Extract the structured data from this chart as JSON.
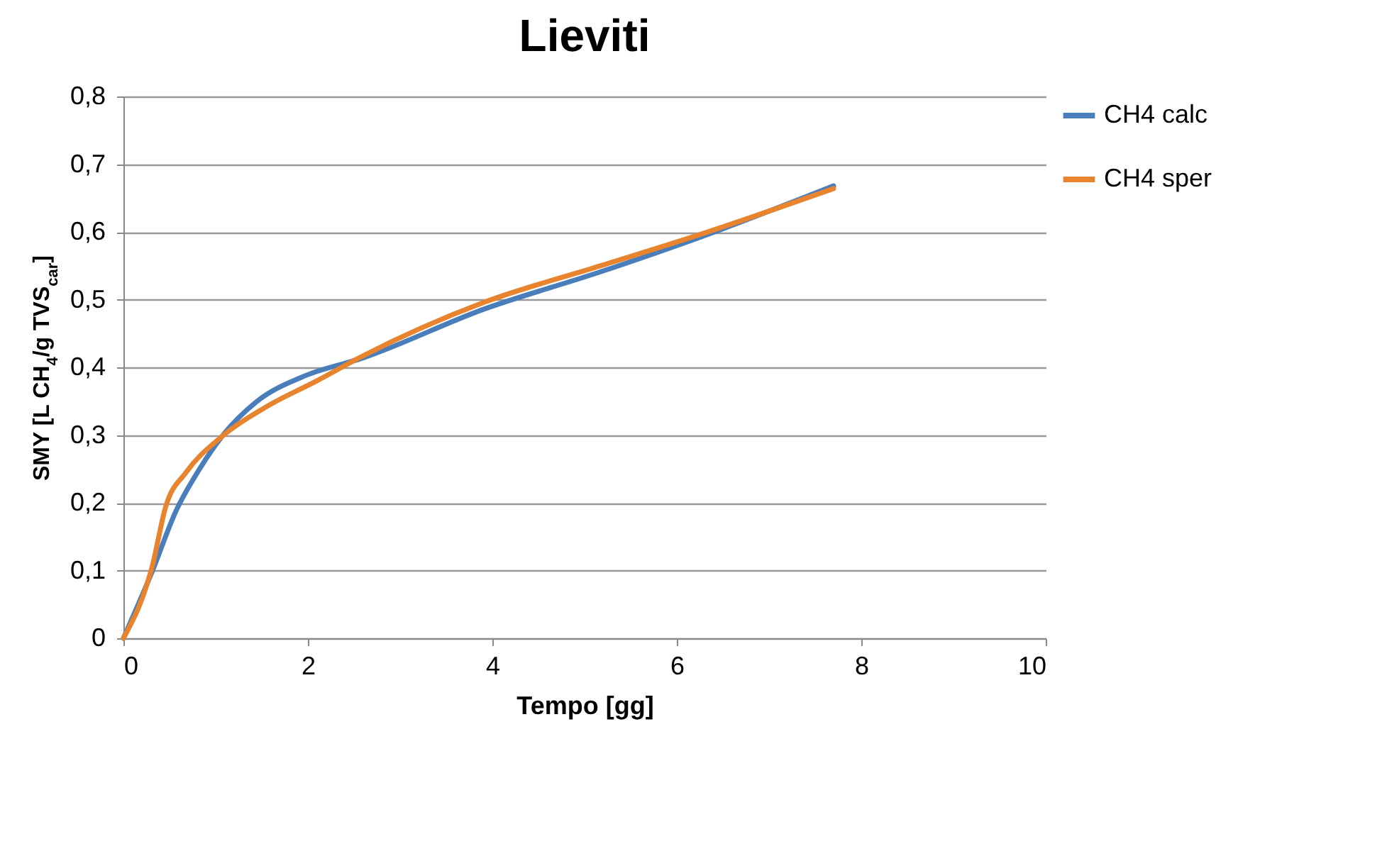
{
  "chart_data": {
    "type": "line",
    "title": "Lieviti",
    "xlabel": "Tempo [gg]",
    "ylabel": "SMY [L CH$_{4}$/g TVS$_{car}$]",
    "xlim": [
      0,
      10
    ],
    "xticks": [
      0,
      2,
      4,
      6,
      8,
      10
    ],
    "ylim": [
      0,
      0.8
    ],
    "yticks": [
      {
        "value": 0,
        "label": "0"
      },
      {
        "value": 0.1,
        "label": "0,1"
      },
      {
        "value": 0.2,
        "label": "0,2"
      },
      {
        "value": 0.3,
        "label": "0,3"
      },
      {
        "value": 0.4,
        "label": "0,4"
      },
      {
        "value": 0.5,
        "label": "0,5"
      },
      {
        "value": 0.6,
        "label": "0,6"
      },
      {
        "value": 0.7,
        "label": "0,7"
      },
      {
        "value": 0.8,
        "label": "0,8"
      }
    ],
    "grid": "y",
    "legend": "right",
    "marker": "none",
    "series": [
      {
        "name": "CH4 calc",
        "color": "#4a7ebb",
        "x": [
          0,
          0.31,
          0.57,
          0.83,
          1.08,
          1.45,
          1.96,
          2.6,
          3.91,
          5.15,
          6.27,
          7.7
        ],
        "values": [
          0,
          0.098,
          0.188,
          0.251,
          0.3,
          0.35,
          0.387,
          0.414,
          0.486,
          0.54,
          0.593,
          0.668
        ]
      },
      {
        "name": "CH4 sper",
        "color": "#e8832e",
        "x": [
          0,
          0.31,
          0.46,
          0.68,
          1.06,
          1.54,
          2.11,
          2.57,
          3.91,
          5.15,
          6.27,
          7.7
        ],
        "values": [
          0,
          0.105,
          0.195,
          0.245,
          0.297,
          0.341,
          0.381,
          0.415,
          0.496,
          0.549,
          0.597,
          0.664
        ]
      }
    ]
  }
}
